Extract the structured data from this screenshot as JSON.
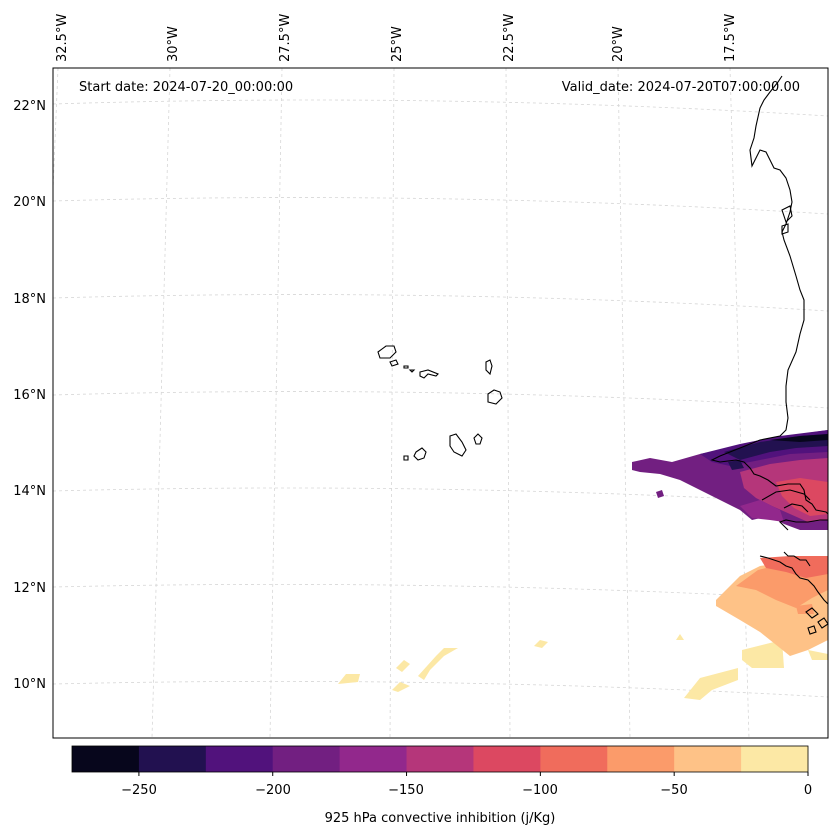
{
  "header": {
    "start_date": "Start date: 2024-07-20_00:00:00",
    "valid_date": "Valid_date: 2024-07-20T07:00:00.00"
  },
  "longitude_labels": [
    "32.5°W",
    "30°W",
    "27.5°W",
    "25°W",
    "22.5°W",
    "20°W",
    "17.5°W"
  ],
  "latitude_labels": [
    "22°N",
    "20°N",
    "18°N",
    "16°N",
    "14°N",
    "12°N",
    "10°N"
  ],
  "colorbar": {
    "label": "925 hPa convective inhibition (j/Kg)",
    "ticks": [
      "−250",
      "−200",
      "−150",
      "−100",
      "−50",
      "0"
    ],
    "levels": [
      -275,
      -250,
      -225,
      -200,
      -175,
      -150,
      -125,
      -100,
      -75,
      -50,
      -25,
      0
    ],
    "colors": [
      "#07061c",
      "#221150",
      "#51127c",
      "#721f81",
      "#92288c",
      "#b5367a",
      "#dc4861",
      "#f06c5c",
      "#fb9b6a",
      "#fec287",
      "#fce8a5"
    ]
  },
  "map_features": {
    "coastline_color": "#000000",
    "gridlines": "dashed, light grey",
    "regions": [
      "Cape Verde islands",
      "West African coast (Mauritania, Senegal, Gambia, Guinea-Bissau)"
    ]
  }
}
